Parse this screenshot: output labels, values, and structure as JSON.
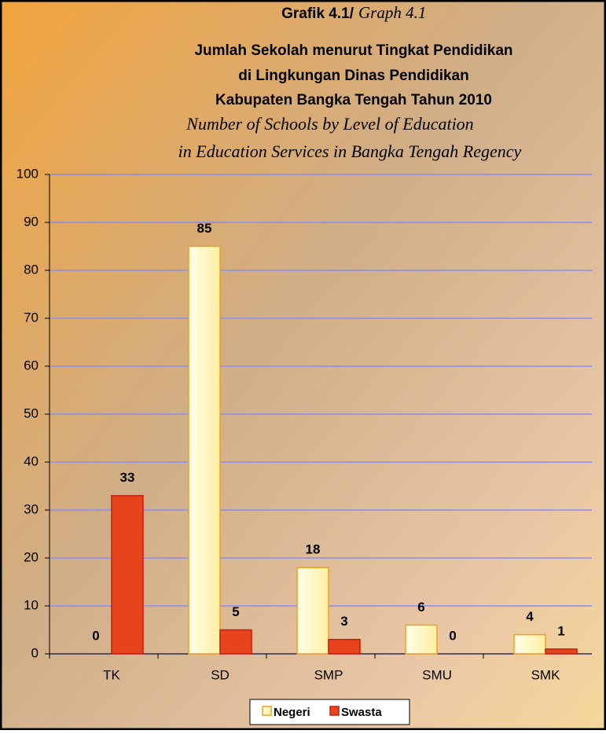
{
  "chart_data": {
    "type": "bar",
    "title": "Grafik  4.1/",
    "title_en": "Graph 4.1",
    "subtitle": [
      "Jumlah Sekolah menurut Tingkat Pendidikan",
      "di Lingkungan Dinas Pendidikan",
      "Kabupaten Bangka Tengah Tahun 2010"
    ],
    "subtitle_en": [
      "Number of Schools by Level of Education",
      "in Education Services in Bangka Tengah Regency"
    ],
    "categories": [
      "TK",
      "SD",
      "SMP",
      "SMU",
      "SMK"
    ],
    "series": [
      {
        "name": "Negeri",
        "color": "#fff6b8",
        "values": [
          0,
          85,
          18,
          6,
          4
        ]
      },
      {
        "name": "Swasta",
        "color": "#e8441c",
        "values": [
          33,
          5,
          3,
          0,
          1
        ]
      }
    ],
    "ylim": [
      0,
      100
    ],
    "yticks": [
      0,
      10,
      20,
      30,
      40,
      50,
      60,
      70,
      80,
      90,
      100
    ],
    "grid": true,
    "legend": "bottom"
  }
}
